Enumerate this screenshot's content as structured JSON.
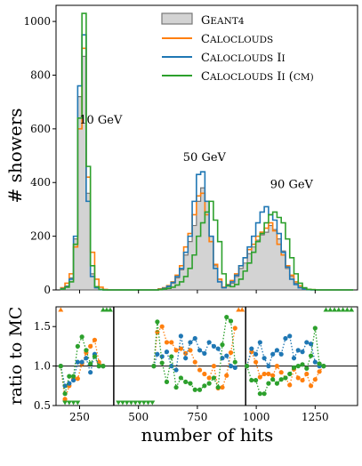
{
  "chart_data": [
    {
      "type": "area",
      "panel": "top",
      "ylabel": "# showers",
      "xlim": [
        150,
        1430
      ],
      "ylim": [
        0,
        1060
      ],
      "yticks": [
        0,
        200,
        400,
        600,
        800,
        1000
      ],
      "bin_edges": [
        170,
        188,
        206,
        224,
        242,
        260,
        278,
        296,
        314,
        332,
        350,
        368,
        386,
        404,
        422,
        440,
        458,
        476,
        494,
        512,
        530,
        548,
        566,
        584,
        602,
        620,
        638,
        656,
        674,
        692,
        710,
        728,
        746,
        764,
        782,
        800,
        818,
        836,
        854,
        872,
        890,
        908,
        926,
        944,
        962,
        980,
        998,
        1016,
        1034,
        1052,
        1070,
        1088,
        1106,
        1124,
        1142,
        1160,
        1178,
        1196,
        1214,
        1232,
        1250,
        1268,
        1286,
        1304,
        1322,
        1340,
        1358,
        1376,
        1394,
        1412
      ],
      "legend": [
        "GEANT4",
        "CALOCLOUDS",
        "CALOCLOUDS II",
        "CALOCLOUDS II (CM)"
      ],
      "legend_position": "upper right",
      "annotations": [
        {
          "text": "10 GeV",
          "x": 340,
          "y": 620
        },
        {
          "text": "50 GeV",
          "x": 780,
          "y": 480
        },
        {
          "text": "90 GeV",
          "x": 1150,
          "y": 380
        }
      ],
      "series": [
        {
          "name": "GEANT4",
          "color": "#aaaaaa",
          "style": "filled",
          "values": [
            5,
            15,
            45,
            190,
            720,
            870,
            360,
            60,
            10,
            2,
            0,
            0,
            0,
            0,
            0,
            0,
            0,
            0,
            0,
            0,
            0,
            0,
            0,
            2,
            5,
            12,
            25,
            45,
            75,
            130,
            180,
            240,
            330,
            380,
            330,
            200,
            90,
            40,
            10,
            15,
            25,
            50,
            80,
            100,
            135,
            160,
            185,
            205,
            215,
            240,
            225,
            190,
            145,
            80,
            50,
            25,
            10,
            5,
            2,
            1,
            0,
            0,
            0,
            0,
            0,
            0,
            0,
            0,
            0
          ]
        },
        {
          "name": "CALOCLOUDS",
          "color": "#ff7f0e",
          "values": [
            8,
            25,
            60,
            160,
            600,
            900,
            420,
            140,
            40,
            10,
            2,
            0,
            0,
            0,
            0,
            0,
            0,
            0,
            0,
            0,
            0,
            0,
            0,
            4,
            8,
            16,
            30,
            55,
            90,
            160,
            210,
            280,
            350,
            360,
            280,
            180,
            95,
            40,
            10,
            20,
            35,
            60,
            90,
            120,
            150,
            170,
            200,
            215,
            230,
            250,
            220,
            170,
            130,
            90,
            55,
            30,
            15,
            6,
            2,
            1,
            0,
            0,
            0,
            0,
            0,
            0,
            0,
            0,
            0
          ]
        },
        {
          "name": "CALOCLOUDS II",
          "color": "#1f77b4",
          "values": [
            5,
            12,
            40,
            200,
            760,
            950,
            330,
            50,
            8,
            1,
            0,
            0,
            0,
            0,
            0,
            0,
            0,
            0,
            0,
            0,
            0,
            0,
            0,
            2,
            6,
            14,
            28,
            50,
            80,
            140,
            200,
            330,
            430,
            440,
            330,
            200,
            80,
            30,
            8,
            18,
            30,
            55,
            90,
            120,
            160,
            200,
            250,
            290,
            310,
            280,
            260,
            210,
            140,
            85,
            40,
            20,
            8,
            3,
            1,
            0,
            0,
            0,
            0,
            0,
            0,
            0,
            0,
            0,
            0
          ]
        },
        {
          "name": "CALOCLOUDS II (CM)",
          "color": "#2ca02c",
          "values": [
            3,
            10,
            30,
            170,
            640,
            1030,
            460,
            90,
            12,
            2,
            0,
            0,
            0,
            0,
            0,
            0,
            0,
            0,
            0,
            0,
            0,
            0,
            0,
            1,
            3,
            6,
            10,
            18,
            30,
            50,
            80,
            130,
            200,
            250,
            290,
            330,
            260,
            180,
            60,
            15,
            12,
            20,
            40,
            70,
            100,
            140,
            180,
            210,
            250,
            280,
            290,
            270,
            250,
            190,
            120,
            60,
            25,
            8,
            2,
            1,
            0,
            0,
            0,
            0,
            0,
            0,
            0,
            0,
            0
          ]
        }
      ]
    },
    {
      "type": "scatter",
      "panel": "bottom",
      "ylabel": "ratio to MC",
      "xlabel": "number of hits",
      "xlim": [
        150,
        1430
      ],
      "ylim": [
        0.5,
        1.75
      ],
      "yticks": [
        0.5,
        1.0,
        1.5
      ],
      "xticks": [
        250,
        500,
        750,
        1000,
        1250
      ],
      "reference_line": 1.0,
      "separators": [
        395,
        955
      ],
      "style": "dotted line with markers",
      "series": [
        {
          "name": "CALOCLOUDS",
          "color": "#ff7f0e",
          "points": [
            [
              170,
              1.0
            ],
            [
              188,
              0.58
            ],
            [
              206,
              0.75
            ],
            [
              224,
              0.84
            ],
            [
              242,
              0.84
            ],
            [
              260,
              1.03
            ],
            [
              278,
              1.17
            ],
            [
              296,
              1.25
            ],
            [
              314,
              1.33
            ],
            [
              332,
              1.05
            ],
            [
              350,
              1.0
            ],
            [
              565,
              1.0
            ],
            [
              580,
              1.43
            ],
            [
              600,
              1.5
            ],
            [
              620,
              1.3
            ],
            [
              640,
              1.3
            ],
            [
              660,
              1.2
            ],
            [
              680,
              1.22
            ],
            [
              700,
              1.16
            ],
            [
              720,
              1.2
            ],
            [
              740,
              1.05
            ],
            [
              760,
              0.95
            ],
            [
              780,
              0.9
            ],
            [
              800,
              0.85
            ],
            [
              820,
              1.0
            ],
            [
              838,
              0.72
            ],
            [
              856,
              0.73
            ],
            [
              874,
              0.88
            ],
            [
              892,
              1.17
            ],
            [
              910,
              1.48
            ],
            [
              960,
              1.0
            ],
            [
              980,
              1.18
            ],
            [
              998,
              1.05
            ],
            [
              1016,
              0.86
            ],
            [
              1034,
              0.9
            ],
            [
              1052,
              0.9
            ],
            [
              1070,
              0.88
            ],
            [
              1088,
              1.0
            ],
            [
              1106,
              0.92
            ],
            [
              1124,
              0.85
            ],
            [
              1142,
              0.76
            ],
            [
              1160,
              0.96
            ],
            [
              1178,
              0.85
            ],
            [
              1196,
              0.82
            ],
            [
              1214,
              0.9
            ],
            [
              1232,
              0.75
            ],
            [
              1250,
              0.83
            ],
            [
              1268,
              0.93
            ],
            [
              1286,
              1.0
            ]
          ]
        },
        {
          "name": "CALOCLOUDS II",
          "color": "#1f77b4",
          "points": [
            [
              170,
              1.0
            ],
            [
              188,
              0.75
            ],
            [
              206,
              0.78
            ],
            [
              224,
              0.82
            ],
            [
              242,
              1.05
            ],
            [
              260,
              1.05
            ],
            [
              278,
              1.1
            ],
            [
              296,
              0.92
            ],
            [
              314,
              1.15
            ],
            [
              332,
              1.0
            ],
            [
              350,
              1.0
            ],
            [
              565,
              1.0
            ],
            [
              580,
              1.15
            ],
            [
              600,
              1.12
            ],
            [
              620,
              1.18
            ],
            [
              640,
              1.0
            ],
            [
              660,
              0.95
            ],
            [
              680,
              1.38
            ],
            [
              700,
              1.1
            ],
            [
              720,
              1.3
            ],
            [
              740,
              1.35
            ],
            [
              760,
              1.2
            ],
            [
              780,
              1.16
            ],
            [
              800,
              1.3
            ],
            [
              820,
              1.25
            ],
            [
              838,
              1.22
            ],
            [
              856,
              1.1
            ],
            [
              874,
              1.13
            ],
            [
              892,
              1.0
            ],
            [
              910,
              0.98
            ],
            [
              960,
              1.0
            ],
            [
              980,
              1.22
            ],
            [
              998,
              1.15
            ],
            [
              1016,
              1.3
            ],
            [
              1034,
              1.1
            ],
            [
              1052,
              1.0
            ],
            [
              1070,
              1.15
            ],
            [
              1088,
              1.2
            ],
            [
              1106,
              1.15
            ],
            [
              1124,
              1.35
            ],
            [
              1142,
              1.38
            ],
            [
              1160,
              1.1
            ],
            [
              1178,
              1.2
            ],
            [
              1196,
              1.18
            ],
            [
              1214,
              1.3
            ],
            [
              1232,
              1.28
            ],
            [
              1250,
              1.05
            ],
            [
              1268,
              1.0
            ],
            [
              1286,
              1.0
            ]
          ]
        },
        {
          "name": "CALOCLOUDS II (CM)",
          "color": "#2ca02c",
          "points": [
            [
              170,
              1.0
            ],
            [
              188,
              0.65
            ],
            [
              206,
              0.87
            ],
            [
              224,
              0.87
            ],
            [
              242,
              1.25
            ],
            [
              260,
              1.37
            ],
            [
              278,
              1.2
            ],
            [
              296,
              1.03
            ],
            [
              314,
              1.12
            ],
            [
              332,
              1.0
            ],
            [
              350,
              1.0
            ],
            [
              565,
              1.0
            ],
            [
              580,
              1.56
            ],
            [
              600,
              1.04
            ],
            [
              620,
              0.8
            ],
            [
              640,
              1.12
            ],
            [
              660,
              0.73
            ],
            [
              680,
              0.85
            ],
            [
              700,
              0.8
            ],
            [
              720,
              0.78
            ],
            [
              740,
              0.7
            ],
            [
              760,
              0.7
            ],
            [
              780,
              0.75
            ],
            [
              800,
              0.78
            ],
            [
              820,
              0.85
            ],
            [
              838,
              0.73
            ],
            [
              856,
              1.27
            ],
            [
              874,
              1.62
            ],
            [
              892,
              1.57
            ],
            [
              910,
              1.05
            ],
            [
              960,
              1.0
            ],
            [
              980,
              0.82
            ],
            [
              998,
              0.82
            ],
            [
              1016,
              0.65
            ],
            [
              1034,
              0.65
            ],
            [
              1052,
              0.78
            ],
            [
              1070,
              0.83
            ],
            [
              1088,
              0.78
            ],
            [
              1106,
              0.83
            ],
            [
              1124,
              0.85
            ],
            [
              1142,
              0.9
            ],
            [
              1160,
              0.98
            ],
            [
              1178,
              1.0
            ],
            [
              1196,
              1.02
            ],
            [
              1214,
              0.97
            ],
            [
              1232,
              1.13
            ],
            [
              1250,
              1.48
            ],
            [
              1268,
              1.03
            ],
            [
              1286,
              1.0
            ]
          ]
        }
      ],
      "offscale_markers": [
        {
          "color": "#2ca02c",
          "marker": "triangle-down",
          "y": 0.5,
          "x": [
            188,
            206,
            224,
            242
          ]
        },
        {
          "color": "#2ca02c",
          "marker": "triangle-up",
          "y": 1.75,
          "x": [
            350,
            365,
            380
          ]
        },
        {
          "color": "#2ca02c",
          "marker": "triangle-up",
          "y": 1.75,
          "x": [
            1296,
            1314,
            1332,
            1350,
            1368,
            1386,
            1404
          ]
        },
        {
          "color": "#2ca02c",
          "marker": "triangle-down",
          "y": 0.5,
          "x": [
            415,
            433,
            451,
            469,
            487,
            505,
            523,
            541,
            559
          ]
        },
        {
          "color": "#ff7f0e",
          "marker": "triangle-up",
          "y": 1.75,
          "x": [
            170,
            925,
            940
          ]
        }
      ]
    }
  ]
}
